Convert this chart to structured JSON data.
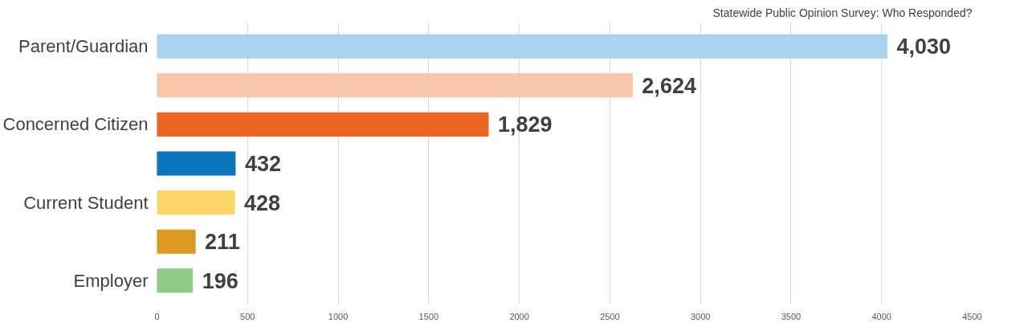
{
  "chart_data": {
    "type": "bar",
    "orientation": "horizontal",
    "title": "Statewide Public Opinion Survey: Who Responded?",
    "categories": [
      "Parent/Guardian",
      null,
      "Concerned Citizen",
      null,
      "Current Student",
      null,
      "Employer"
    ],
    "values": [
      4030,
      2624,
      1829,
      432,
      428,
      211,
      196
    ],
    "colors": [
      "#a9d3ee",
      "#f9c5a8",
      "#ee6422",
      "#0a76bd",
      "#fdd668",
      "#dc9a25",
      "#8fcb86"
    ],
    "value_labels": [
      "4,030",
      "2,624",
      "1,829",
      "432",
      "428",
      "211",
      "196"
    ],
    "xlim": [
      0,
      4500
    ],
    "xticks": [
      0,
      500,
      1000,
      1500,
      2000,
      2500,
      3000,
      3500,
      4000,
      4500
    ],
    "grid": "x"
  }
}
